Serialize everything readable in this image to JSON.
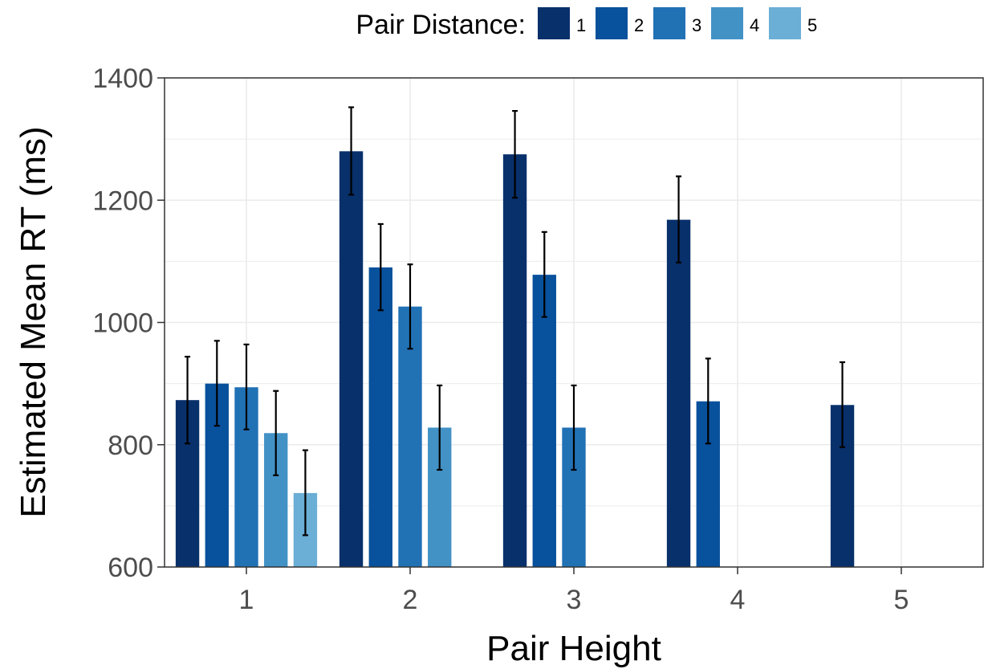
{
  "chart_data": {
    "type": "bar",
    "title": "",
    "xlabel": "Pair Height",
    "ylabel": "Estimated Mean RT (ms)",
    "ylim": [
      600,
      1400
    ],
    "yticks": [
      600,
      800,
      1000,
      1200,
      1400
    ],
    "grid": true,
    "legend": {
      "title": "Pair Distance:",
      "position": "top"
    },
    "categories": [
      "1",
      "2",
      "3",
      "4",
      "5"
    ],
    "series": [
      {
        "name": "1",
        "color": "#08306b",
        "values": [
          873,
          1280,
          1275,
          1168,
          865
        ],
        "error_low": [
          802,
          1209,
          1204,
          1098,
          796
        ],
        "error_high": [
          944,
          1352,
          1346,
          1239,
          935
        ]
      },
      {
        "name": "2",
        "color": "#08519c",
        "values": [
          900,
          1090,
          1078,
          871,
          null
        ],
        "error_low": [
          831,
          1020,
          1009,
          802,
          null
        ],
        "error_high": [
          970,
          1161,
          1148,
          941,
          null
        ]
      },
      {
        "name": "3",
        "color": "#2171b5",
        "values": [
          894,
          1026,
          828,
          null,
          null
        ],
        "error_low": [
          825,
          957,
          759,
          null,
          null
        ],
        "error_high": [
          964,
          1095,
          897,
          null,
          null
        ]
      },
      {
        "name": "4",
        "color": "#4292c6",
        "values": [
          819,
          828,
          null,
          null,
          null
        ],
        "error_low": [
          750,
          759,
          null,
          null,
          null
        ],
        "error_high": [
          888,
          897,
          null,
          null,
          null
        ]
      },
      {
        "name": "5",
        "color": "#6baed6",
        "values": [
          721,
          null,
          null,
          null,
          null
        ],
        "error_low": [
          652,
          null,
          null,
          null,
          null
        ],
        "error_high": [
          791,
          null,
          null,
          null,
          null
        ]
      }
    ]
  }
}
